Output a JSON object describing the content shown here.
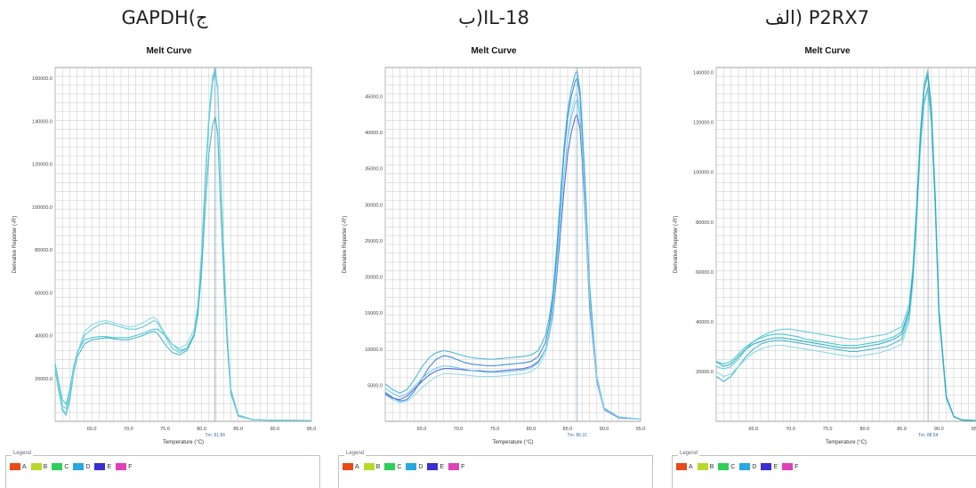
{
  "chart_data": [
    {
      "type": "line",
      "panel_title": "GAPDH(ج",
      "title": "Melt Curve",
      "xlabel": "Temperature (°C)",
      "ylabel": "Derivative Reporter (-R')",
      "xlim": [
        60,
        95
      ],
      "ylim": [
        0,
        165000
      ],
      "x_ticks": [
        65.0,
        70.0,
        75.0,
        80.0,
        85.0,
        90.0,
        95.0
      ],
      "y_ticks": [
        20000.0,
        40000.0,
        60000.0,
        80000.0,
        100000.0,
        120000.0,
        140000.0,
        160000.0
      ],
      "tm_label": "Tm: 81.84",
      "tm_x": 81.84,
      "x": [
        60,
        60.5,
        61,
        61.5,
        62,
        62.5,
        63,
        64,
        65,
        66,
        67,
        68,
        69,
        70,
        71,
        72,
        73,
        73.5,
        74,
        75,
        76,
        77,
        78,
        79,
        79.5,
        80,
        80.5,
        81,
        81.5,
        81.85,
        82.2,
        82.5,
        83,
        83.5,
        84,
        85,
        87,
        90,
        95
      ],
      "series": [
        {
          "color": "#2ec4cf",
          "values": [
            27000,
            18000,
            10000,
            8000,
            15000,
            25000,
            32000,
            38000,
            39000,
            39500,
            39500,
            39000,
            39000,
            39000,
            40000,
            41000,
            42500,
            43000,
            43000,
            40000,
            36000,
            33000,
            34000,
            40000,
            52000,
            75000,
            110000,
            140000,
            158000,
            163000,
            155000,
            125000,
            80000,
            40000,
            15000,
            3000,
            800,
            500,
            400
          ]
        },
        {
          "color": "#52c8d8",
          "values": [
            26000,
            16000,
            7000,
            6000,
            13000,
            24000,
            32000,
            40000,
            43000,
            45000,
            46000,
            45000,
            44000,
            43000,
            43000,
            44000,
            46000,
            47000,
            46000,
            40000,
            34000,
            32000,
            34000,
            41000,
            54000,
            78000,
            112000,
            142000,
            160000,
            165000,
            156000,
            126000,
            80000,
            40000,
            15000,
            3000,
            800,
            500,
            400
          ]
        },
        {
          "color": "#3ab0c4",
          "values": [
            24000,
            14000,
            5000,
            3000,
            10000,
            22000,
            30000,
            36000,
            38000,
            38500,
            39000,
            38500,
            38000,
            38000,
            39000,
            40000,
            41500,
            42000,
            41000,
            36000,
            32000,
            31000,
            33000,
            40000,
            50000,
            70000,
            100000,
            125000,
            138000,
            142000,
            134000,
            108000,
            70000,
            36000,
            13000,
            2500,
            700,
            500,
            400
          ]
        },
        {
          "color": "#7fd6e0",
          "values": [
            25000,
            15000,
            6000,
            4000,
            12000,
            23000,
            31000,
            42000,
            45000,
            46500,
            47000,
            46000,
            45000,
            44000,
            44500,
            46000,
            48000,
            48500,
            47000,
            41000,
            36000,
            34000,
            36000,
            43000,
            55000,
            80000,
            115000,
            144000,
            161000,
            164000,
            156000,
            128000,
            82000,
            42000,
            15000,
            3000,
            800,
            500,
            400
          ]
        }
      ],
      "legend_title": "Legend",
      "legend": [
        {
          "label": "A",
          "color": "#e84a1a"
        },
        {
          "label": "B",
          "color": "#b8d82c"
        },
        {
          "label": "C",
          "color": "#2fcf5a"
        },
        {
          "label": "D",
          "color": "#29a8e0"
        },
        {
          "label": "E",
          "color": "#3a2fd0"
        },
        {
          "label": "F",
          "color": "#e040b8"
        }
      ]
    },
    {
      "type": "line",
      "panel_title": "ب)IL-18",
      "title": "Melt Curve",
      "xlabel": "Temperature (°C)",
      "ylabel": "Derivative Reporter (-R')",
      "xlim": [
        60,
        95
      ],
      "ylim": [
        0,
        49000
      ],
      "x_ticks": [
        65.0,
        70.0,
        75.0,
        80.0,
        85.0,
        90.0,
        95.0
      ],
      "y_ticks": [
        5000.0,
        10000.0,
        15000.0,
        20000.0,
        25000.0,
        30000.0,
        35000.0,
        40000.0,
        45000.0
      ],
      "tm_label": "Tm: 86.31",
      "tm_x": 86.31,
      "x": [
        60,
        61,
        62,
        63,
        64,
        65,
        66,
        67,
        68,
        69,
        70,
        71,
        72,
        73,
        74,
        75,
        76,
        77,
        78,
        79,
        80,
        81,
        82,
        82.5,
        83,
        83.5,
        84,
        84.5,
        85,
        85.5,
        86,
        86.3,
        86.7,
        87,
        87.5,
        88,
        89,
        90,
        92,
        95
      ],
      "series": [
        {
          "color": "#2a7fd4",
          "values": [
            4000,
            3300,
            2800,
            3000,
            4200,
            5800,
            7500,
            8600,
            9100,
            8900,
            8500,
            8100,
            7900,
            7800,
            7700,
            7700,
            7800,
            7900,
            8000,
            8100,
            8300,
            9000,
            11000,
            13500,
            17000,
            23000,
            30000,
            37000,
            42000,
            45000,
            47000,
            47500,
            45000,
            40000,
            30000,
            18000,
            6000,
            1800,
            600,
            300
          ]
        },
        {
          "color": "#4a5ad8",
          "values": [
            3800,
            3200,
            3000,
            3500,
            4500,
            5500,
            6400,
            7000,
            7300,
            7300,
            7200,
            7100,
            7000,
            7000,
            6900,
            6900,
            7000,
            7100,
            7200,
            7300,
            7600,
            8300,
            10000,
            12000,
            15000,
            20000,
            26000,
            32000,
            37000,
            40000,
            42000,
            42500,
            40500,
            36000,
            27000,
            16000,
            5500,
            1600,
            500,
            300
          ]
        },
        {
          "color": "#3ab0d8",
          "values": [
            5200,
            4400,
            3900,
            4400,
            5800,
            7500,
            8800,
            9500,
            9800,
            9600,
            9300,
            9000,
            8800,
            8700,
            8600,
            8600,
            8700,
            8800,
            8900,
            9000,
            9200,
            9800,
            12000,
            14500,
            18000,
            24000,
            31000,
            38000,
            43000,
            46000,
            48000,
            48500,
            46000,
            41000,
            31000,
            19000,
            6200,
            1800,
            600,
            300
          ]
        },
        {
          "color": "#5fc8e8",
          "values": [
            4500,
            3900,
            3400,
            3800,
            4800,
            5900,
            6800,
            7400,
            7700,
            7600,
            7400,
            7200,
            7000,
            6900,
            6800,
            6800,
            6800,
            6900,
            7000,
            7100,
            7400,
            8100,
            10000,
            12500,
            16000,
            21500,
            28000,
            34000,
            39000,
            42000,
            44000,
            44500,
            42000,
            37500,
            28000,
            17000,
            5800,
            1700,
            600,
            300
          ]
        },
        {
          "color": "#8fd8ec",
          "values": [
            3600,
            3000,
            2600,
            2800,
            3600,
            4600,
            5500,
            6200,
            6600,
            6600,
            6500,
            6400,
            6300,
            6200,
            6200,
            6200,
            6300,
            6400,
            6500,
            6600,
            6900,
            7600,
            9500,
            12000,
            15500,
            21000,
            27500,
            34000,
            39500,
            43000,
            45000,
            45500,
            43000,
            38000,
            28500,
            17000,
            5800,
            1700,
            600,
            300
          ]
        }
      ],
      "legend_title": "Legend",
      "legend": [
        {
          "label": "A",
          "color": "#e84a1a"
        },
        {
          "label": "B",
          "color": "#b8d82c"
        },
        {
          "label": "C",
          "color": "#2fcf5a"
        },
        {
          "label": "D",
          "color": "#29a8e0"
        },
        {
          "label": "E",
          "color": "#3a2fd0"
        },
        {
          "label": "F",
          "color": "#e040b8"
        }
      ]
    },
    {
      "type": "line",
      "panel_title": "الف) P2RX7",
      "title": "Melt Curve",
      "xlabel": "Temperature (°C)",
      "ylabel": "Derivative Reporter (-R')",
      "xlim": [
        60,
        95
      ],
      "ylim": [
        0,
        142000
      ],
      "x_ticks": [
        65.0,
        70.0,
        75.0,
        80.0,
        85.0,
        90.0,
        95.0
      ],
      "y_ticks": [
        20000.0,
        40000.0,
        60000.0,
        80000.0,
        100000.0,
        120000.0,
        140000.0
      ],
      "tm_label": "Tm: 88.54",
      "tm_x": 88.54,
      "x": [
        60,
        61,
        62,
        63,
        64,
        65,
        66,
        67,
        68,
        69,
        70,
        71,
        72,
        73,
        74,
        75,
        76,
        77,
        78,
        79,
        80,
        81,
        82,
        83,
        84,
        85,
        86,
        86.5,
        87,
        87.5,
        88,
        88.5,
        89,
        89.5,
        90,
        91,
        92,
        93,
        95
      ],
      "series": [
        {
          "color": "#2ec4cf",
          "values": [
            24000,
            23000,
            24000,
            27000,
            30000,
            32000,
            33500,
            34500,
            35000,
            35000,
            34500,
            34000,
            33000,
            32500,
            32000,
            31500,
            31000,
            30500,
            30500,
            30500,
            31000,
            31500,
            32000,
            33000,
            34000,
            36000,
            45000,
            60000,
            85000,
            115000,
            135000,
            140000,
            125000,
            90000,
            45000,
            10000,
            2000,
            600,
            300
          ]
        },
        {
          "color": "#52c8d8",
          "values": [
            22000,
            21000,
            22000,
            25000,
            29000,
            32000,
            34000,
            35500,
            36500,
            37000,
            37000,
            36500,
            36000,
            35500,
            35000,
            34500,
            34000,
            33500,
            33000,
            33000,
            33500,
            34000,
            34500,
            35000,
            36500,
            38000,
            47000,
            62000,
            87000,
            116000,
            135000,
            141000,
            126000,
            92000,
            46000,
            10000,
            2000,
            600,
            300
          ]
        },
        {
          "color": "#3ab0c4",
          "values": [
            18000,
            16000,
            18000,
            22000,
            26000,
            29000,
            31000,
            32000,
            32500,
            32500,
            32000,
            31500,
            31000,
            30500,
            30000,
            29500,
            29000,
            28500,
            28000,
            28000,
            28500,
            29000,
            29500,
            30000,
            31500,
            33000,
            42000,
            57000,
            82000,
            110000,
            128000,
            134000,
            120000,
            87000,
            43000,
            9000,
            1800,
            500,
            300
          ]
        },
        {
          "color": "#7fd6e0",
          "values": [
            20000,
            18000,
            19000,
            22000,
            25000,
            27500,
            29000,
            30000,
            30500,
            30500,
            30000,
            29500,
            29000,
            28500,
            28000,
            27500,
            27000,
            26500,
            26000,
            26000,
            26500,
            27000,
            27500,
            28500,
            29500,
            31000,
            40000,
            55000,
            80000,
            108000,
            127000,
            133000,
            119000,
            86000,
            42000,
            9000,
            1800,
            500,
            300
          ]
        },
        {
          "color": "#1fa8b8",
          "values": [
            24000,
            22000,
            23000,
            26000,
            29000,
            31000,
            32000,
            33000,
            33500,
            33500,
            33000,
            32500,
            32000,
            31500,
            31000,
            30500,
            30000,
            29500,
            29500,
            29500,
            30000,
            30500,
            31000,
            32000,
            33000,
            35000,
            44000,
            59000,
            84000,
            113000,
            133000,
            139000,
            124000,
            89000,
            44000,
            10000,
            2000,
            600,
            300
          ]
        }
      ],
      "legend_title": "Legend",
      "legend": [
        {
          "label": "A",
          "color": "#e84a1a"
        },
        {
          "label": "B",
          "color": "#b8d82c"
        },
        {
          "label": "C",
          "color": "#2fcf5a"
        },
        {
          "label": "D",
          "color": "#29a8e0"
        },
        {
          "label": "E",
          "color": "#3a2fd0"
        },
        {
          "label": "F",
          "color": "#e040b8"
        }
      ]
    }
  ]
}
